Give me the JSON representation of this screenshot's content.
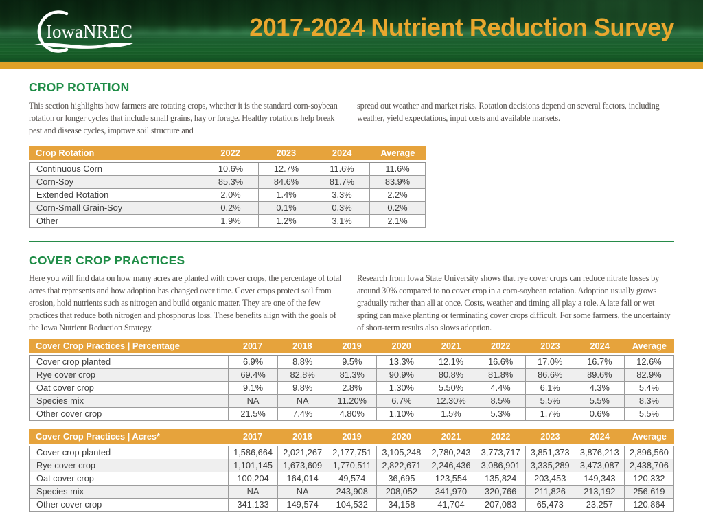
{
  "header": {
    "logo_text": "IowaNREC",
    "title": "2017-2024 Nutrient Reduction Survey"
  },
  "colors": {
    "gold": "#DFA127",
    "table_gold": "#E6A33C",
    "green": "#1E8C46",
    "title_gold": "#E9A72E"
  },
  "crop_rotation": {
    "heading": "CROP ROTATION",
    "intro_left": "This section highlights how farmers are rotating crops, whether it is the standard corn-soybean rotation or longer cycles that include small grains, hay or forage. Healthy rotations help break pest and disease cycles, improve soil structure and",
    "intro_right": "spread out weather and market risks. Rotation decisions depend on several factors, including weather, yield expectations, input costs and available markets.",
    "table": {
      "columns": [
        "Crop Rotation",
        "2022",
        "2023",
        "2024",
        "Average"
      ],
      "rows": [
        [
          "Continuous Corn",
          "10.6%",
          "12.7%",
          "11.6%",
          "11.6%"
        ],
        [
          "Corn-Soy",
          "85.3%",
          "84.6%",
          "81.7%",
          "83.9%"
        ],
        [
          "Extended Rotation",
          "2.0%",
          "1.4%",
          "3.3%",
          "2.2%"
        ],
        [
          "Corn-Small Grain-Soy",
          "0.2%",
          "0.1%",
          "0.3%",
          "0.2%"
        ],
        [
          "Other",
          "1.9%",
          "1.2%",
          "3.1%",
          "2.1%"
        ]
      ]
    }
  },
  "cover_crop": {
    "heading": "COVER CROP PRACTICES",
    "intro_left": "Here you will find data on how many acres are planted with cover crops, the percentage of total acres that represents and how adoption has changed over time. Cover crops protect soil from erosion, hold nutrients such as nitrogen and build organic matter. They are one of the few practices that reduce both nitrogen and phosphorus loss. These benefits align with the goals of the Iowa Nutrient Reduction Strategy.",
    "intro_right": "Research from Iowa State University shows that rye cover crops can reduce nitrate losses by around 30% compared to no cover crop in a corn-soybean rotation. Adoption usually grows gradually rather than all at once. Costs, weather and timing all play a role. A late fall or wet spring can make planting or terminating cover crops difficult. For some farmers, the uncertainty of short-term results also slows adoption.",
    "percentage_table": {
      "columns": [
        "Cover Crop Practices | Percentage",
        "2017",
        "2018",
        "2019",
        "2020",
        "2021",
        "2022",
        "2023",
        "2024",
        "Average"
      ],
      "rows": [
        [
          "Cover crop planted",
          "6.9%",
          "8.8%",
          "9.5%",
          "13.3%",
          "12.1%",
          "16.6%",
          "17.0%",
          "16.7%",
          "12.6%"
        ],
        [
          "Rye cover crop",
          "69.4%",
          "82.8%",
          "81.3%",
          "90.9%",
          "80.8%",
          "81.8%",
          "86.6%",
          "89.6%",
          "82.9%"
        ],
        [
          "Oat cover crop",
          "9.1%",
          "9.8%",
          "2.8%",
          "1.30%",
          "5.50%",
          "4.4%",
          "6.1%",
          "4.3%",
          "5.4%"
        ],
        [
          "Species mix",
          "NA",
          "NA",
          "11.20%",
          "6.7%",
          "12.30%",
          "8.5%",
          "5.5%",
          "5.5%",
          "8.3%"
        ],
        [
          "Other cover crop",
          "21.5%",
          "7.4%",
          "4.80%",
          "1.10%",
          "1.5%",
          "5.3%",
          "1.7%",
          "0.6%",
          "5.5%"
        ]
      ]
    },
    "acres_table": {
      "columns": [
        "Cover Crop Practices | Acres*",
        "2017",
        "2018",
        "2019",
        "2020",
        "2021",
        "2022",
        "2023",
        "2024",
        "Average"
      ],
      "rows": [
        [
          "Cover crop planted",
          "1,586,664",
          "2,021,267",
          "2,177,751",
          "3,105,248",
          "2,780,243",
          "3,773,717",
          "3,851,373",
          "3,876,213",
          "2,896,560"
        ],
        [
          "Rye cover crop",
          "1,101,145",
          "1,673,609",
          "1,770,511",
          "2,822,671",
          "2,246,436",
          "3,086,901",
          "3,335,289",
          "3,473,087",
          "2,438,706"
        ],
        [
          "Oat cover crop",
          "100,204",
          "164,014",
          "49,574",
          "36,695",
          "123,554",
          "135,824",
          "203,453",
          "149,343",
          "120,332"
        ],
        [
          "Species mix",
          "NA",
          "NA",
          "243,908",
          "208,052",
          "341,970",
          "320,766",
          "211,826",
          "213,192",
          "256,619"
        ],
        [
          "Other cover crop",
          "341,133",
          "149,574",
          "104,532",
          "34,158",
          "41,704",
          "207,083",
          "65,473",
          "23,257",
          "120,864"
        ]
      ]
    }
  }
}
